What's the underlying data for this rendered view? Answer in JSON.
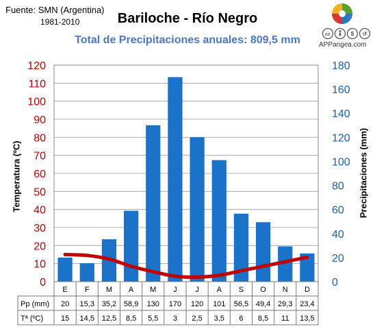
{
  "header": {
    "source": "Fuente: SMN (Argentina)",
    "period": "1981-2010",
    "title": "Bariloche - Río Negro",
    "subtitle": "Total de Precipitaciones anuales: 809,5 mm",
    "brand": "APPangea.com",
    "license_icons": [
      "cc-icon",
      "by-icon",
      "nc-icon",
      "sa-icon"
    ]
  },
  "colors": {
    "bar": "#1a73c9",
    "temp_line": "#c00000",
    "left_axis": "#c00000",
    "right_axis": "#1f5fa8",
    "subtitle": "#4a78c4"
  },
  "chart_data": {
    "type": "bar",
    "categories": [
      "E",
      "F",
      "M",
      "A",
      "M",
      "J",
      "J",
      "A",
      "S",
      "O",
      "N",
      "D"
    ],
    "series": [
      {
        "values": [
          20,
          15.3,
          35.2,
          58.9,
          130,
          170,
          120,
          101,
          56.5,
          49.4,
          29.3,
          23.4
        ],
        "axis": "right",
        "type": "bar"
      },
      {
        "values": [
          15,
          14.5,
          12.5,
          8.5,
          5.5,
          3,
          2.5,
          3.5,
          6,
          8.5,
          11,
          13.5
        ],
        "axis": "left",
        "type": "line"
      }
    ],
    "ylabel_left": "Temperatura (ºC)",
    "ylabel_right": "Precipitaciones (mm)",
    "ylim_left": [
      0,
      120
    ],
    "ylim_right": [
      0,
      180
    ],
    "yticks_left": [
      "0",
      "10",
      "20",
      "30",
      "40",
      "50",
      "60",
      "70",
      "80",
      "90",
      "100",
      "110",
      "120"
    ],
    "yticks_right": [
      "0",
      "20",
      "40",
      "60",
      "80",
      "100",
      "120",
      "140",
      "160",
      "180"
    ],
    "grid": true,
    "table": {
      "row_labels": [
        "Pp (mm)",
        "Tª (ºC)"
      ],
      "rows": [
        [
          "20",
          "15,3",
          "35,2",
          "58,9",
          "130",
          "170",
          "120",
          "101",
          "56,5",
          "49,4",
          "29,3",
          "23,4"
        ],
        [
          "15",
          "14,5",
          "12,5",
          "8,5",
          "5,5",
          "3",
          "2,5",
          "3,5",
          "6",
          "8,5",
          "11",
          "13,5"
        ]
      ]
    }
  }
}
